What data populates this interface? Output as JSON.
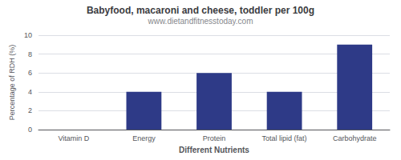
{
  "chart_data": {
    "type": "bar",
    "title": "Babyfood, macaroni and cheese, toddler per 100g",
    "subtitle": "www.dietandfitnesstoday.com",
    "xlabel": "Different Nutrients",
    "ylabel": "Percentage of RDH (%)",
    "categories": [
      "Vitamin D",
      "Energy",
      "Protein",
      "Total lipid (fat)",
      "Carbohydrate"
    ],
    "values": [
      0,
      4,
      6,
      4,
      9
    ],
    "color": "#2E3A87",
    "ylim": [
      0,
      10
    ],
    "yticks": [
      0,
      2,
      4,
      6,
      8,
      10
    ],
    "grid": true
  }
}
